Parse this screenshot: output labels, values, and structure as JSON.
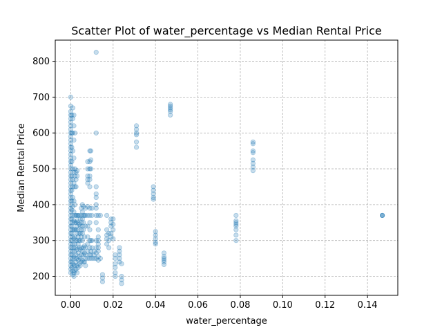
{
  "chart_data": {
    "type": "scatter",
    "title": "Scatter Plot of water_percentage vs Median Rental Price",
    "xlabel": "water_percentage",
    "ylabel": "Median Rental Price",
    "xlim": [
      -0.0073,
      0.1543
    ],
    "ylim": [
      147,
      859
    ],
    "xticks": [
      0.0,
      0.02,
      0.04,
      0.06,
      0.08,
      0.1,
      0.12,
      0.14
    ],
    "xtick_labels": [
      "0.00",
      "0.02",
      "0.04",
      "0.06",
      "0.08",
      "0.10",
      "0.12",
      "0.14"
    ],
    "yticks": [
      200,
      300,
      400,
      500,
      600,
      700,
      800
    ],
    "ytick_labels": [
      "200",
      "300",
      "400",
      "500",
      "600",
      "700",
      "800"
    ],
    "grid": true,
    "grid_style": "dashed",
    "marker_color": "#1f77b4",
    "marker_alpha": 0.25,
    "points": [
      [
        0.0,
        700
      ],
      [
        0.0,
        675
      ],
      [
        0.0,
        660
      ],
      [
        0.0,
        650
      ],
      [
        0.0,
        640
      ],
      [
        0.0,
        630
      ],
      [
        0.0,
        620
      ],
      [
        0.0,
        610
      ],
      [
        0.0,
        600
      ],
      [
        0.0,
        590
      ],
      [
        0.0,
        580
      ],
      [
        0.0,
        570
      ],
      [
        0.0,
        560
      ],
      [
        0.0,
        550
      ],
      [
        0.0,
        540
      ],
      [
        0.0,
        530
      ],
      [
        0.0,
        520
      ],
      [
        0.0,
        510
      ],
      [
        0.0,
        500
      ],
      [
        0.0,
        490
      ],
      [
        0.0,
        480
      ],
      [
        0.0,
        470
      ],
      [
        0.0,
        460
      ],
      [
        0.0,
        450
      ],
      [
        0.0,
        440
      ],
      [
        0.0,
        430
      ],
      [
        0.0,
        420
      ],
      [
        0.0,
        410
      ],
      [
        0.0,
        400
      ],
      [
        0.0,
        390
      ],
      [
        0.0,
        380
      ],
      [
        0.0,
        370
      ],
      [
        0.0,
        360
      ],
      [
        0.0,
        350
      ],
      [
        0.0,
        340
      ],
      [
        0.0,
        330
      ],
      [
        0.0,
        320
      ],
      [
        0.0,
        310
      ],
      [
        0.0,
        300
      ],
      [
        0.0,
        290
      ],
      [
        0.0,
        280
      ],
      [
        0.0,
        270
      ],
      [
        0.0,
        260
      ],
      [
        0.0,
        250
      ],
      [
        0.0,
        240
      ],
      [
        0.0,
        230
      ],
      [
        0.0,
        220
      ],
      [
        0.0,
        210
      ],
      [
        0.0005,
        650
      ],
      [
        0.0005,
        600
      ],
      [
        0.0005,
        560
      ],
      [
        0.0005,
        520
      ],
      [
        0.0005,
        480
      ],
      [
        0.0005,
        440
      ],
      [
        0.0005,
        410
      ],
      [
        0.0005,
        385
      ],
      [
        0.0005,
        360
      ],
      [
        0.0005,
        340
      ],
      [
        0.0005,
        320
      ],
      [
        0.0005,
        300
      ],
      [
        0.0005,
        280
      ],
      [
        0.0005,
        260
      ],
      [
        0.0005,
        240
      ],
      [
        0.0005,
        225
      ],
      [
        0.001,
        670
      ],
      [
        0.001,
        640
      ],
      [
        0.001,
        600
      ],
      [
        0.001,
        550
      ],
      [
        0.001,
        500
      ],
      [
        0.001,
        470
      ],
      [
        0.001,
        450
      ],
      [
        0.001,
        420
      ],
      [
        0.001,
        395
      ],
      [
        0.001,
        370
      ],
      [
        0.001,
        350
      ],
      [
        0.001,
        330
      ],
      [
        0.001,
        310
      ],
      [
        0.001,
        290
      ],
      [
        0.001,
        270
      ],
      [
        0.001,
        250
      ],
      [
        0.001,
        235
      ],
      [
        0.001,
        215
      ],
      [
        0.001,
        205
      ],
      [
        0.0015,
        650
      ],
      [
        0.0015,
        620
      ],
      [
        0.0015,
        580
      ],
      [
        0.0015,
        530
      ],
      [
        0.0015,
        490
      ],
      [
        0.0015,
        460
      ],
      [
        0.0015,
        410
      ],
      [
        0.0015,
        380
      ],
      [
        0.0015,
        355
      ],
      [
        0.0015,
        330
      ],
      [
        0.0015,
        305
      ],
      [
        0.0015,
        280
      ],
      [
        0.0015,
        255
      ],
      [
        0.0015,
        230
      ],
      [
        0.0015,
        210
      ],
      [
        0.0015,
        200
      ],
      [
        0.002,
        600
      ],
      [
        0.002,
        500
      ],
      [
        0.002,
        480
      ],
      [
        0.002,
        450
      ],
      [
        0.002,
        400
      ],
      [
        0.002,
        370
      ],
      [
        0.002,
        350
      ],
      [
        0.002,
        330
      ],
      [
        0.002,
        310
      ],
      [
        0.002,
        290
      ],
      [
        0.002,
        270
      ],
      [
        0.002,
        250
      ],
      [
        0.002,
        230
      ],
      [
        0.002,
        215
      ],
      [
        0.0025,
        490
      ],
      [
        0.0025,
        470
      ],
      [
        0.0025,
        450
      ],
      [
        0.0025,
        370
      ],
      [
        0.0025,
        350
      ],
      [
        0.0025,
        330
      ],
      [
        0.0025,
        300
      ],
      [
        0.0025,
        280
      ],
      [
        0.0025,
        260
      ],
      [
        0.0025,
        240
      ],
      [
        0.0025,
        220
      ],
      [
        0.003,
        495
      ],
      [
        0.003,
        480
      ],
      [
        0.003,
        370
      ],
      [
        0.003,
        355
      ],
      [
        0.003,
        340
      ],
      [
        0.003,
        320
      ],
      [
        0.003,
        300
      ],
      [
        0.003,
        275
      ],
      [
        0.003,
        250
      ],
      [
        0.003,
        230
      ],
      [
        0.003,
        210
      ],
      [
        0.0035,
        370
      ],
      [
        0.0035,
        350
      ],
      [
        0.0035,
        330
      ],
      [
        0.0035,
        310
      ],
      [
        0.0035,
        290
      ],
      [
        0.0035,
        265
      ],
      [
        0.0035,
        245
      ],
      [
        0.0035,
        225
      ],
      [
        0.004,
        370
      ],
      [
        0.004,
        345
      ],
      [
        0.004,
        320
      ],
      [
        0.004,
        300
      ],
      [
        0.004,
        280
      ],
      [
        0.004,
        255
      ],
      [
        0.004,
        235
      ],
      [
        0.0045,
        360
      ],
      [
        0.0045,
        340
      ],
      [
        0.0045,
        320
      ],
      [
        0.0045,
        300
      ],
      [
        0.0045,
        275
      ],
      [
        0.0045,
        250
      ],
      [
        0.0045,
        230
      ],
      [
        0.005,
        390
      ],
      [
        0.005,
        370
      ],
      [
        0.005,
        350
      ],
      [
        0.005,
        330
      ],
      [
        0.005,
        310
      ],
      [
        0.005,
        280
      ],
      [
        0.005,
        260
      ],
      [
        0.005,
        240
      ],
      [
        0.0055,
        400
      ],
      [
        0.0055,
        380
      ],
      [
        0.0055,
        360
      ],
      [
        0.0055,
        340
      ],
      [
        0.0055,
        320
      ],
      [
        0.0055,
        300
      ],
      [
        0.0055,
        270
      ],
      [
        0.0055,
        245
      ],
      [
        0.006,
        395
      ],
      [
        0.006,
        370
      ],
      [
        0.006,
        350
      ],
      [
        0.006,
        330
      ],
      [
        0.006,
        280
      ],
      [
        0.006,
        260
      ],
      [
        0.006,
        240
      ],
      [
        0.0065,
        370
      ],
      [
        0.0065,
        310
      ],
      [
        0.0065,
        285
      ],
      [
        0.0065,
        265
      ],
      [
        0.0065,
        240
      ],
      [
        0.007,
        390
      ],
      [
        0.007,
        370
      ],
      [
        0.007,
        340
      ],
      [
        0.007,
        280
      ],
      [
        0.007,
        260
      ],
      [
        0.007,
        250
      ],
      [
        0.007,
        230
      ],
      [
        0.008,
        520
      ],
      [
        0.008,
        500
      ],
      [
        0.008,
        480
      ],
      [
        0.008,
        470
      ],
      [
        0.008,
        460
      ],
      [
        0.008,
        395
      ],
      [
        0.008,
        370
      ],
      [
        0.008,
        340
      ],
      [
        0.008,
        310
      ],
      [
        0.008,
        290
      ],
      [
        0.008,
        270
      ],
      [
        0.008,
        250
      ],
      [
        0.009,
        550
      ],
      [
        0.009,
        520
      ],
      [
        0.009,
        500
      ],
      [
        0.009,
        480
      ],
      [
        0.009,
        470
      ],
      [
        0.009,
        450
      ],
      [
        0.009,
        390
      ],
      [
        0.009,
        370
      ],
      [
        0.009,
        350
      ],
      [
        0.009,
        330
      ],
      [
        0.009,
        300
      ],
      [
        0.009,
        280
      ],
      [
        0.009,
        260
      ],
      [
        0.009,
        250
      ],
      [
        0.0095,
        550
      ],
      [
        0.0095,
        525
      ],
      [
        0.0095,
        500
      ],
      [
        0.0095,
        300
      ],
      [
        0.0095,
        270
      ],
      [
        0.0095,
        260
      ],
      [
        0.01,
        390
      ],
      [
        0.01,
        370
      ],
      [
        0.01,
        300
      ],
      [
        0.01,
        280
      ],
      [
        0.01,
        250
      ],
      [
        0.011,
        270
      ],
      [
        0.011,
        260
      ],
      [
        0.011,
        250
      ],
      [
        0.012,
        825
      ],
      [
        0.012,
        600
      ],
      [
        0.012,
        450
      ],
      [
        0.012,
        430
      ],
      [
        0.012,
        420
      ],
      [
        0.012,
        400
      ],
      [
        0.012,
        390
      ],
      [
        0.012,
        370
      ],
      [
        0.012,
        350
      ],
      [
        0.012,
        300
      ],
      [
        0.012,
        280
      ],
      [
        0.012,
        265
      ],
      [
        0.012,
        250
      ],
      [
        0.013,
        370
      ],
      [
        0.013,
        330
      ],
      [
        0.013,
        310
      ],
      [
        0.013,
        300
      ],
      [
        0.013,
        290
      ],
      [
        0.013,
        280
      ],
      [
        0.013,
        270
      ],
      [
        0.013,
        255
      ],
      [
        0.013,
        245
      ],
      [
        0.014,
        370
      ],
      [
        0.014,
        250
      ],
      [
        0.015,
        205
      ],
      [
        0.015,
        195
      ],
      [
        0.015,
        185
      ],
      [
        0.017,
        370
      ],
      [
        0.017,
        330
      ],
      [
        0.017,
        315
      ],
      [
        0.017,
        305
      ],
      [
        0.017,
        290
      ],
      [
        0.018,
        320
      ],
      [
        0.018,
        300
      ],
      [
        0.018,
        280
      ],
      [
        0.019,
        360
      ],
      [
        0.019,
        350
      ],
      [
        0.019,
        340
      ],
      [
        0.019,
        320
      ],
      [
        0.019,
        310
      ],
      [
        0.02,
        360
      ],
      [
        0.02,
        345
      ],
      [
        0.02,
        330
      ],
      [
        0.02,
        305
      ],
      [
        0.021,
        260
      ],
      [
        0.021,
        250
      ],
      [
        0.021,
        235
      ],
      [
        0.021,
        225
      ],
      [
        0.021,
        210
      ],
      [
        0.021,
        200
      ],
      [
        0.023,
        280
      ],
      [
        0.023,
        270
      ],
      [
        0.023,
        260
      ],
      [
        0.023,
        250
      ],
      [
        0.023,
        240
      ],
      [
        0.024,
        235
      ],
      [
        0.024,
        200
      ],
      [
        0.024,
        190
      ],
      [
        0.024,
        180
      ],
      [
        0.031,
        620
      ],
      [
        0.031,
        610
      ],
      [
        0.031,
        600
      ],
      [
        0.031,
        595
      ],
      [
        0.031,
        575
      ],
      [
        0.031,
        560
      ],
      [
        0.039,
        450
      ],
      [
        0.039,
        440
      ],
      [
        0.039,
        430
      ],
      [
        0.039,
        420
      ],
      [
        0.039,
        415
      ],
      [
        0.04,
        325
      ],
      [
        0.04,
        315
      ],
      [
        0.04,
        305
      ],
      [
        0.04,
        295
      ],
      [
        0.04,
        290
      ],
      [
        0.044,
        265
      ],
      [
        0.044,
        255
      ],
      [
        0.044,
        250
      ],
      [
        0.044,
        245
      ],
      [
        0.044,
        240
      ],
      [
        0.044,
        233
      ],
      [
        0.047,
        680
      ],
      [
        0.047,
        675
      ],
      [
        0.047,
        670
      ],
      [
        0.047,
        665
      ],
      [
        0.047,
        660
      ],
      [
        0.047,
        650
      ],
      [
        0.078,
        370
      ],
      [
        0.078,
        355
      ],
      [
        0.078,
        350
      ],
      [
        0.078,
        345
      ],
      [
        0.078,
        340
      ],
      [
        0.078,
        330
      ],
      [
        0.078,
        315
      ],
      [
        0.078,
        300
      ],
      [
        0.086,
        575
      ],
      [
        0.086,
        570
      ],
      [
        0.086,
        550
      ],
      [
        0.086,
        545
      ],
      [
        0.086,
        525
      ],
      [
        0.086,
        515
      ],
      [
        0.086,
        505
      ],
      [
        0.086,
        495
      ],
      [
        0.147,
        370
      ],
      [
        0.147,
        370
      ],
      [
        0.147,
        370
      ]
    ]
  }
}
